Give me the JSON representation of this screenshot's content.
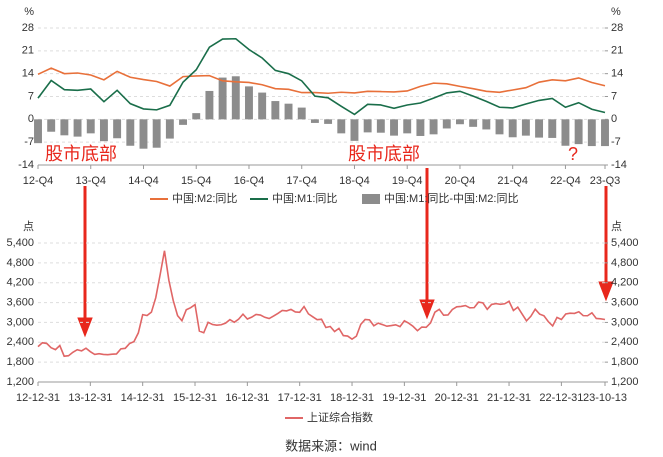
{
  "chart_data": [
    {
      "type": "combo",
      "y_unit": "%",
      "y2_unit": "%",
      "categories": [
        "12-Q4",
        null,
        null,
        null,
        "13-Q4",
        null,
        null,
        null,
        "14-Q4",
        null,
        null,
        null,
        "15-Q4",
        null,
        null,
        null,
        "16-Q4",
        null,
        null,
        null,
        "17-Q4",
        null,
        null,
        null,
        "18-Q4",
        null,
        null,
        null,
        "19-Q4",
        null,
        null,
        null,
        "20-Q4",
        null,
        null,
        null,
        "21-Q4",
        null,
        null,
        null,
        "22-Q4",
        null,
        null,
        "23-Q3"
      ],
      "series": [
        {
          "name": "中国:M2:同比",
          "type": "line",
          "color": "#e8703a",
          "values": [
            13.8,
            15.7,
            14.0,
            14.2,
            13.6,
            12.1,
            14.7,
            12.9,
            12.2,
            11.6,
            10.2,
            13.1,
            13.3,
            13.4,
            11.8,
            11.5,
            11.3,
            10.6,
            9.4,
            9.2,
            8.2,
            8.2,
            8.0,
            8.3,
            8.1,
            8.6,
            8.5,
            8.4,
            8.7,
            10.1,
            11.1,
            10.9,
            10.1,
            9.4,
            8.6,
            8.3,
            9.0,
            9.7,
            11.4,
            12.1,
            11.8,
            12.7,
            11.3,
            10.3
          ]
        },
        {
          "name": "中国:M1:同比",
          "type": "line",
          "color": "#1a6e4a",
          "values": [
            6.5,
            11.9,
            9.1,
            8.9,
            9.3,
            5.4,
            8.9,
            4.8,
            3.2,
            2.9,
            4.3,
            11.4,
            15.2,
            22.1,
            24.6,
            24.7,
            21.4,
            18.8,
            15.0,
            14.0,
            11.8,
            7.1,
            6.6,
            4.0,
            1.5,
            4.6,
            4.4,
            3.4,
            4.4,
            5.0,
            6.5,
            8.1,
            8.6,
            7.1,
            5.5,
            3.7,
            3.5,
            4.7,
            5.8,
            6.4,
            3.7,
            5.1,
            3.1,
            2.1
          ]
        },
        {
          "name": "中国:M1:同比-中国:M2:同比",
          "type": "bar",
          "color": "#8c8c8c",
          "values": [
            -7.3,
            -3.8,
            -4.9,
            -5.3,
            -4.3,
            -6.7,
            -5.8,
            -8.1,
            -9.0,
            -8.7,
            -5.9,
            -1.7,
            1.9,
            8.7,
            12.8,
            13.2,
            10.1,
            8.2,
            5.6,
            4.8,
            3.6,
            -1.1,
            -1.4,
            -4.3,
            -6.6,
            -4.0,
            -4.1,
            -5.0,
            -4.3,
            -5.1,
            -4.6,
            -2.8,
            -1.5,
            -2.3,
            -3.1,
            -4.6,
            -5.5,
            -5.0,
            -5.6,
            -5.7,
            -8.1,
            -7.6,
            -8.2,
            -8.2
          ]
        }
      ],
      "ylim": [
        -14,
        28
      ],
      "yticks": [
        28,
        21,
        14,
        7,
        0,
        -7,
        -14
      ],
      "y2lim": [
        -14,
        28
      ],
      "y2ticks": [
        28,
        21,
        14,
        7,
        0,
        -7,
        -14
      ],
      "grid": true,
      "annotations": [
        "股市底部",
        "股市底部",
        "?"
      ]
    },
    {
      "type": "line",
      "y_unit": "点",
      "y2_unit": "点",
      "categories": [
        "12-12-31",
        null,
        null,
        null,
        null,
        null,
        null,
        null,
        null,
        null,
        null,
        null,
        "13-12-31",
        null,
        null,
        null,
        null,
        null,
        null,
        null,
        null,
        null,
        null,
        null,
        "14-12-31",
        null,
        null,
        null,
        null,
        null,
        null,
        null,
        null,
        null,
        null,
        null,
        "15-12-31",
        null,
        null,
        null,
        null,
        null,
        null,
        null,
        null,
        null,
        null,
        null,
        "16-12-31",
        null,
        null,
        null,
        null,
        null,
        null,
        null,
        null,
        null,
        null,
        null,
        "17-12-31",
        null,
        null,
        null,
        null,
        null,
        null,
        null,
        null,
        null,
        null,
        null,
        "18-12-31",
        null,
        null,
        null,
        null,
        null,
        null,
        null,
        null,
        null,
        null,
        null,
        "19-12-31",
        null,
        null,
        null,
        null,
        null,
        null,
        null,
        null,
        null,
        null,
        null,
        "20-12-31",
        null,
        null,
        null,
        null,
        null,
        null,
        null,
        null,
        null,
        null,
        null,
        "21-12-31",
        null,
        null,
        null,
        null,
        null,
        null,
        null,
        null,
        null,
        null,
        null,
        "22-12-31",
        null,
        null,
        null,
        null,
        null,
        null,
        null,
        null,
        null,
        "23-10-13"
      ],
      "series": [
        {
          "name": "上证综合指数",
          "type": "line",
          "color": "#e06666",
          "values": [
            2269,
            2385,
            2365,
            2237,
            2178,
            2301,
            1979,
            1994,
            2098,
            2175,
            2141,
            2220,
            2116,
            2033,
            2056,
            2033,
            2026,
            2039,
            2048,
            2202,
            2217,
            2364,
            2420,
            2683,
            3235,
            3210,
            3310,
            3748,
            4441,
            5166,
            4277,
            3664,
            3206,
            3053,
            3383,
            3445,
            3539,
            2738,
            2688,
            3004,
            2938,
            2917,
            2930,
            2979,
            3085,
            3005,
            3100,
            3250,
            3104,
            3159,
            3242,
            3223,
            3155,
            3117,
            3192,
            3273,
            3361,
            3349,
            3393,
            3317,
            3307,
            3481,
            3259,
            3169,
            3082,
            3095,
            2847,
            2876,
            2725,
            2821,
            2603,
            2588,
            2494,
            2585,
            2941,
            3091,
            3078,
            2899,
            2979,
            2932,
            2886,
            2905,
            2929,
            2872,
            3050,
            2977,
            2880,
            2750,
            2860,
            2852,
            2985,
            3310,
            3396,
            3218,
            3225,
            3392,
            3473,
            3483,
            3509,
            3442,
            3447,
            3615,
            3591,
            3397,
            3544,
            3568,
            3547,
            3564,
            3640,
            3361,
            3462,
            3252,
            3047,
            3186,
            3399,
            3253,
            3202,
            3024,
            2893,
            3151,
            3089,
            3255,
            3280,
            3273,
            3323,
            3205,
            3202,
            3291,
            3120,
            3110,
            3088
          ]
        }
      ],
      "ylim": [
        1200,
        5400
      ],
      "yticks": [
        {
          "value": 5400,
          "label": "5,400"
        },
        {
          "value": 4800,
          "label": "4,800"
        },
        {
          "value": 4200,
          "label": "4,200"
        },
        {
          "value": 3600,
          "label": "3,600"
        },
        {
          "value": 3000,
          "label": "3,000"
        },
        {
          "value": 2400,
          "label": "2,400"
        },
        {
          "value": 1800,
          "label": "1,800"
        },
        {
          "value": 1200,
          "label": "1,200"
        }
      ],
      "y2lim": [
        1200,
        5400
      ],
      "y2ticks": [
        {
          "value": 5400,
          "label": "5,400"
        },
        {
          "value": 4800,
          "label": "4,800"
        },
        {
          "value": 4200,
          "label": "4,200"
        },
        {
          "value": 3600,
          "label": "3,600"
        },
        {
          "value": 3000,
          "label": "3,000"
        },
        {
          "value": 2400,
          "label": "2,400"
        },
        {
          "value": 1800,
          "label": "1,800"
        },
        {
          "value": 1200,
          "label": "1,200"
        }
      ],
      "grid": true
    }
  ],
  "footer": "数据来源：wind"
}
